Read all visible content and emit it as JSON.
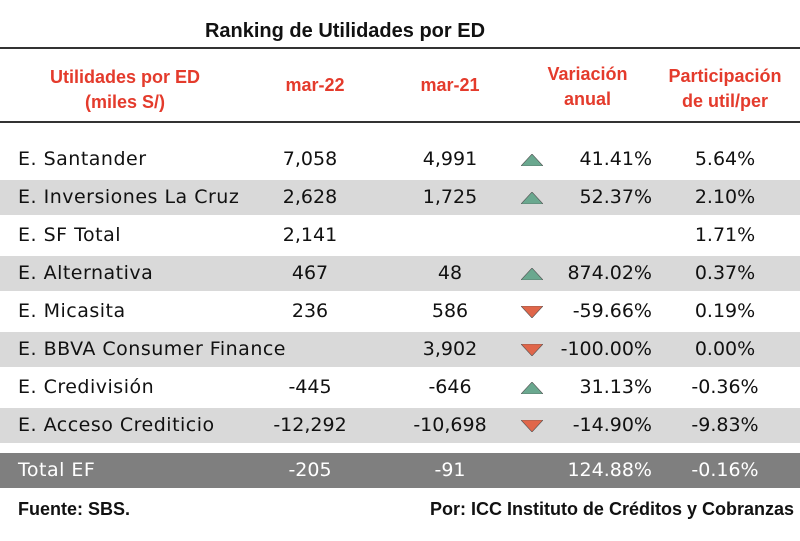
{
  "chart_data": {
    "type": "table",
    "title": "Ranking de Utilidades por ED",
    "columns": [
      "Utilidades por ED (miles S/)",
      "mar-22",
      "mar-21",
      "Variación anual",
      "Participación de util/per"
    ],
    "header": {
      "col1_line1": "Utilidades por ED",
      "col1_line2": "(miles S/)",
      "col2": "mar-22",
      "col3": "mar-21",
      "col4_line1": "Variación",
      "col4_line2": "anual",
      "col5_line1": "Participación",
      "col5_line2": "de util/per"
    },
    "rows": [
      {
        "name": "E. Santander",
        "mar22": "7,058",
        "mar21": "4,991",
        "trend": "up",
        "variacion": "41.41%",
        "participacion": "5.64%"
      },
      {
        "name": "E. Inversiones La Cruz",
        "mar22": "2,628",
        "mar21": "1,725",
        "trend": "up",
        "variacion": "52.37%",
        "participacion": "2.10%"
      },
      {
        "name": "E. SF Total",
        "mar22": "2,141",
        "mar21": "",
        "trend": "",
        "variacion": "",
        "participacion": "1.71%"
      },
      {
        "name": "E. Alternativa",
        "mar22": "467",
        "mar21": "48",
        "trend": "up",
        "variacion": "874.02%",
        "participacion": "0.37%"
      },
      {
        "name": "E. Micasita",
        "mar22": "236",
        "mar21": "586",
        "trend": "down",
        "variacion": "-59.66%",
        "participacion": "0.19%"
      },
      {
        "name": "E. BBVA Consumer Finance",
        "mar22": "",
        "mar21": "3,902",
        "trend": "down",
        "variacion": "-100.00%",
        "participacion": "0.00%"
      },
      {
        "name": "E. Credivisión",
        "mar22": "-445",
        "mar21": "-646",
        "trend": "up",
        "variacion": "31.13%",
        "participacion": "-0.36%"
      },
      {
        "name": "E. Acceso Crediticio",
        "mar22": "-12,292",
        "mar21": "-10,698",
        "trend": "down",
        "variacion": "-14.90%",
        "participacion": "-9.83%"
      }
    ],
    "total": {
      "name": "Total EF",
      "mar22": "-205",
      "mar21": "-91",
      "variacion": "124.88%",
      "participacion": "-0.16%"
    }
  },
  "colors": {
    "header_text": "#e43b2c",
    "shaded_row": "#d9d9d9",
    "total_row": "#7f7f7f",
    "up_triangle": "#6aa88f",
    "down_triangle": "#e0664a"
  },
  "icons": {
    "up": "triangle-up-icon",
    "down": "triangle-down-icon"
  },
  "footer": {
    "source": "Fuente: SBS.",
    "author": "Por: ICC Instituto de Créditos y Cobranzas"
  }
}
